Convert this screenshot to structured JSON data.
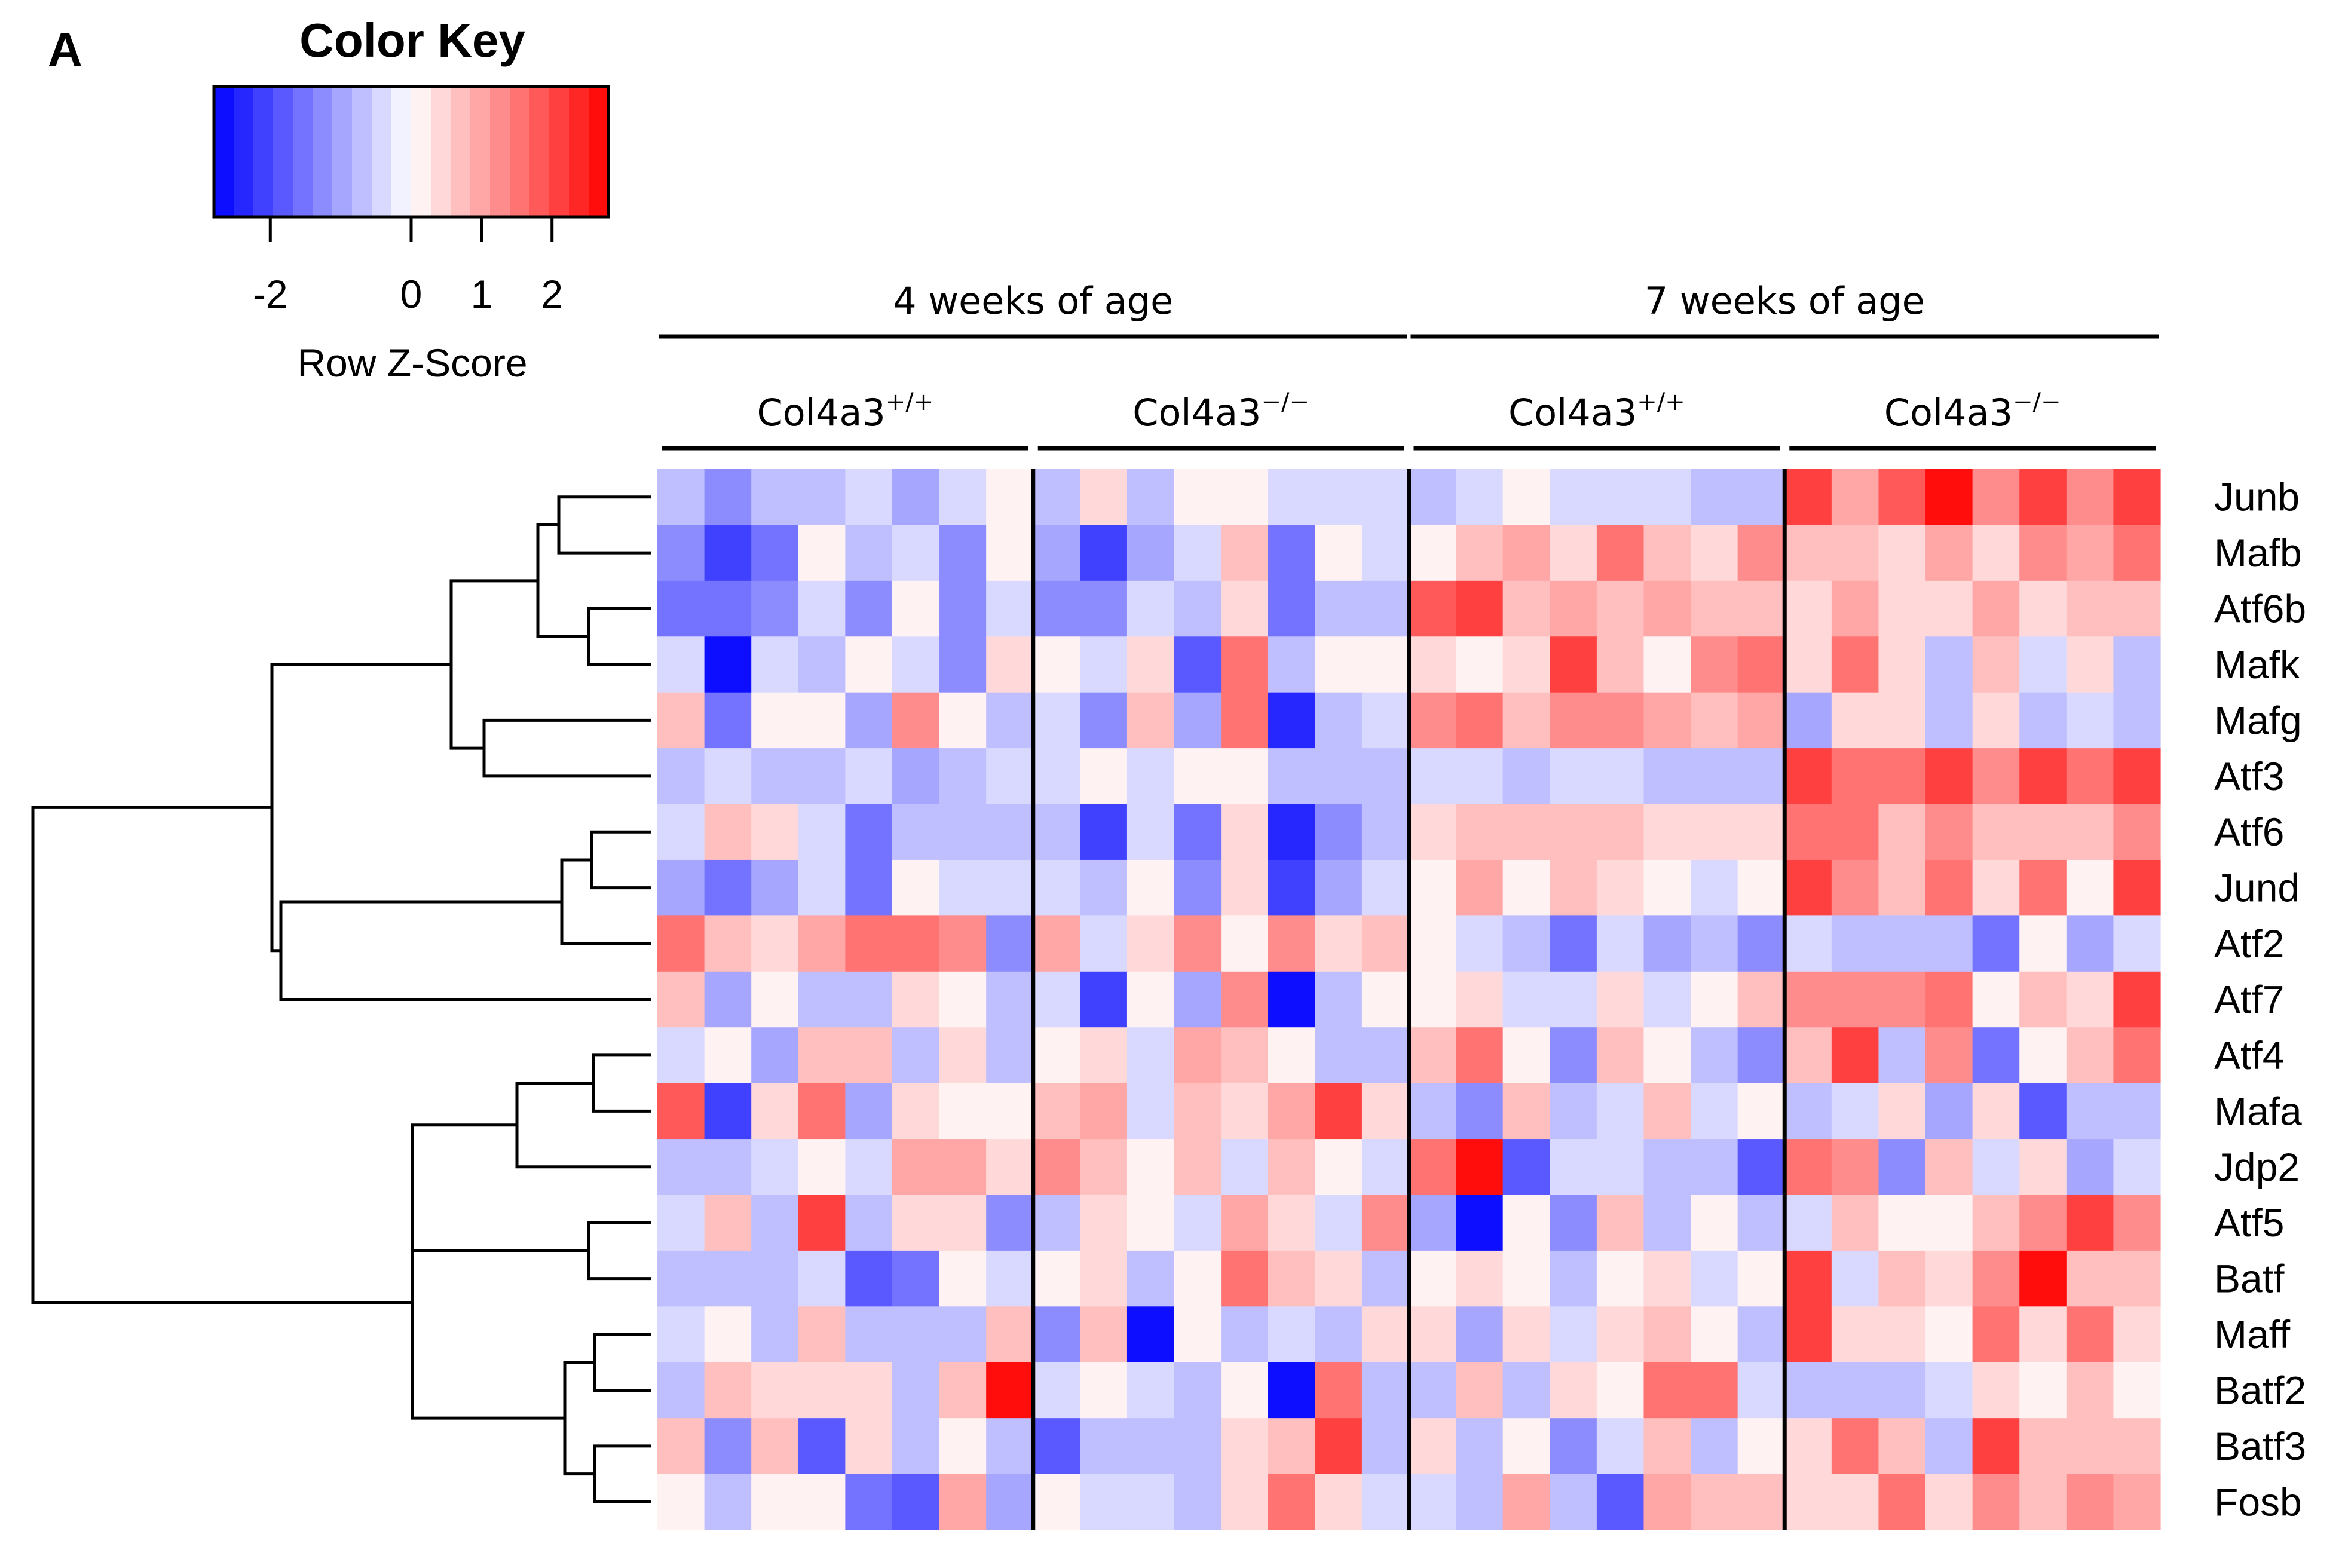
{
  "panel_label": "A",
  "color_key": {
    "title": "Color Key",
    "xlabel": "Row Z-Score",
    "ticks": [
      -2,
      0,
      1,
      2
    ],
    "range": [
      -2.8,
      2.8
    ],
    "low_color": "#0000ff",
    "mid_color": "#ffffff",
    "high_color": "#ff0000",
    "bins": 20
  },
  "groups": {
    "age": [
      {
        "label": "4 weeks of age",
        "columns": [
          0,
          15
        ]
      },
      {
        "label": "7 weeks of age",
        "columns": [
          16,
          31
        ]
      }
    ],
    "genotype": [
      {
        "prefix": "Col4a3",
        "sup": "+/+",
        "columns": [
          0,
          7
        ]
      },
      {
        "prefix": "Col4a3",
        "sup": "−/−",
        "columns": [
          8,
          15
        ]
      },
      {
        "prefix": "Col4a3",
        "sup": "+/+",
        "columns": [
          16,
          23
        ]
      },
      {
        "prefix": "Col4a3",
        "sup": "−/−",
        "columns": [
          24,
          31
        ]
      }
    ]
  },
  "chart_data": {
    "type": "heatmap",
    "title": "",
    "xlabel": "",
    "ylabel": "",
    "value_label": "Row Z-Score",
    "zlim": [
      -2.8,
      2.8
    ],
    "n_columns": 32,
    "rows": [
      "Junb",
      "Mafb",
      "Atf6b",
      "Mafk",
      "Mafg",
      "Atf3",
      "Atf6",
      "Jund",
      "Atf2",
      "Atf7",
      "Atf4",
      "Mafa",
      "Jdp2",
      "Atf5",
      "Batf",
      "Maff",
      "Batf2",
      "Batf3",
      "Fosb"
    ],
    "values": [
      [
        -0.8,
        -1.2,
        -0.6,
        -0.6,
        -0.3,
        -1.0,
        -0.5,
        0.0,
        -0.6,
        0.3,
        -0.6,
        0.0,
        0.0,
        -0.3,
        -0.3,
        -0.3,
        -0.8,
        -0.3,
        0.0,
        -0.4,
        -0.4,
        -0.4,
        -0.6,
        -0.6,
        2.0,
        1.0,
        1.8,
        2.6,
        1.2,
        2.2,
        1.3,
        2.2
      ],
      [
        -1.2,
        -2.0,
        -1.5,
        0.0,
        -0.6,
        -0.3,
        -1.2,
        0.0,
        -1.0,
        -2.0,
        -1.0,
        -0.3,
        0.8,
        -1.5,
        0.0,
        -0.3,
        0.0,
        0.6,
        1.0,
        0.5,
        1.6,
        0.8,
        0.4,
        1.2,
        0.6,
        0.6,
        0.3,
        1.1,
        0.3,
        1.2,
        1.0,
        1.6
      ],
      [
        -1.5,
        -1.5,
        -1.2,
        -0.3,
        -1.2,
        0.0,
        -1.2,
        -0.3,
        -1.2,
        -1.2,
        -0.3,
        -0.6,
        0.4,
        -1.5,
        -0.8,
        -0.6,
        1.8,
        2.2,
        0.8,
        1.1,
        0.6,
        1.1,
        0.8,
        0.8,
        0.3,
        1.0,
        0.4,
        0.4,
        1.0,
        0.4,
        0.8,
        0.8
      ],
      [
        -0.3,
        -2.8,
        -0.3,
        -0.6,
        0.0,
        -0.3,
        -1.2,
        0.4,
        0.0,
        -0.3,
        0.3,
        -1.8,
        1.6,
        -0.6,
        0.0,
        0.0,
        0.4,
        0.0,
        0.4,
        2.0,
        0.6,
        0.0,
        1.2,
        1.6,
        0.4,
        1.6,
        0.3,
        -0.6,
        0.6,
        -0.3,
        0.3,
        -0.6
      ],
      [
        0.8,
        -1.5,
        0.0,
        0.0,
        -1.0,
        1.2,
        0.0,
        -0.6,
        -0.3,
        -1.2,
        0.8,
        -1.0,
        1.6,
        -2.4,
        -0.8,
        -0.3,
        1.2,
        1.6,
        0.8,
        1.2,
        1.2,
        1.0,
        0.8,
        1.0,
        -1.0,
        0.4,
        0.4,
        -0.6,
        0.4,
        -0.6,
        -0.3,
        -0.6
      ],
      [
        -0.6,
        -0.3,
        -0.6,
        -0.6,
        -0.3,
        -1.0,
        -0.6,
        -0.3,
        -0.3,
        0.0,
        -0.3,
        0.0,
        0.0,
        -0.6,
        -0.6,
        -0.6,
        -0.3,
        -0.3,
        -0.6,
        -0.3,
        -0.3,
        -0.6,
        -0.6,
        -0.6,
        2.0,
        1.6,
        1.6,
        2.0,
        1.2,
        2.0,
        1.6,
        2.2
      ],
      [
        -0.3,
        0.8,
        0.3,
        -0.3,
        -1.5,
        -0.6,
        -0.6,
        -0.8,
        -0.6,
        -2.0,
        -0.3,
        -1.5,
        0.3,
        -2.4,
        -1.2,
        -0.8,
        0.4,
        0.6,
        0.6,
        0.6,
        0.6,
        0.4,
        0.4,
        0.4,
        1.6,
        1.6,
        0.8,
        1.2,
        0.8,
        0.8,
        0.8,
        1.2
      ],
      [
        -1.0,
        -1.5,
        -1.0,
        -0.3,
        -1.5,
        0.0,
        -0.3,
        -0.3,
        -0.3,
        -0.6,
        0.0,
        -1.2,
        0.4,
        -2.0,
        -1.0,
        -0.3,
        0.0,
        1.0,
        0.0,
        0.6,
        0.3,
        0.0,
        -0.3,
        0.0,
        2.0,
        1.2,
        0.8,
        1.6,
        0.4,
        1.6,
        0.0,
        2.0
      ],
      [
        1.6,
        0.6,
        0.3,
        1.0,
        1.6,
        1.6,
        1.2,
        -1.2,
        1.0,
        -0.3,
        0.3,
        1.2,
        0.0,
        1.2,
        0.3,
        0.6,
        0.0,
        -0.3,
        -0.6,
        -1.6,
        -0.3,
        -1.0,
        -0.8,
        -1.2,
        -0.4,
        -0.6,
        -0.6,
        -0.6,
        -1.6,
        0.0,
        -1.0,
        -0.3
      ],
      [
        0.6,
        -1.0,
        0.0,
        -0.6,
        -0.6,
        0.3,
        0.0,
        -0.6,
        -0.3,
        -2.0,
        0.0,
        -1.0,
        1.2,
        -2.8,
        -0.6,
        0.0,
        0.0,
        0.3,
        -0.3,
        -0.3,
        0.3,
        -0.3,
        0.0,
        0.6,
        1.4,
        1.4,
        1.4,
        1.6,
        0.0,
        0.6,
        0.3,
        2.0
      ],
      [
        -0.3,
        0.0,
        -1.0,
        0.6,
        0.6,
        -0.8,
        0.3,
        -0.6,
        0.0,
        0.3,
        -0.3,
        1.0,
        0.6,
        0.0,
        -0.8,
        -0.6,
        0.6,
        1.6,
        0.0,
        -1.2,
        0.6,
        0.0,
        -0.6,
        -1.2,
        0.6,
        2.0,
        -0.6,
        1.2,
        -1.6,
        0.0,
        0.6,
        1.6
      ],
      [
        1.8,
        -2.0,
        0.3,
        1.6,
        -1.0,
        0.3,
        0.0,
        0.0,
        0.6,
        1.0,
        -0.3,
        0.6,
        0.3,
        1.0,
        2.0,
        0.3,
        -0.6,
        -1.2,
        0.6,
        -0.6,
        -0.3,
        0.6,
        -0.3,
        0.0,
        -0.6,
        -0.3,
        0.3,
        -1.0,
        0.3,
        -1.8,
        -0.6,
        -0.6
      ],
      [
        -0.6,
        -0.8,
        -0.3,
        0.0,
        -0.3,
        1.0,
        1.0,
        0.3,
        1.2,
        0.6,
        0.0,
        0.6,
        -0.3,
        0.6,
        0.0,
        -0.3,
        1.6,
        2.8,
        -1.8,
        -0.3,
        -0.3,
        -0.6,
        -0.6,
        -1.8,
        1.6,
        1.2,
        -1.2,
        0.6,
        -0.3,
        0.3,
        -1.0,
        -0.3
      ],
      [
        -0.3,
        0.6,
        -0.6,
        2.2,
        -0.6,
        0.3,
        0.3,
        -1.2,
        -0.6,
        0.3,
        0.0,
        -0.3,
        1.0,
        0.3,
        -0.3,
        1.2,
        -1.0,
        -2.6,
        0.0,
        -1.2,
        0.6,
        -0.8,
        0.0,
        -0.6,
        -0.3,
        0.6,
        0.0,
        0.0,
        0.6,
        1.2,
        2.0,
        1.2
      ],
      [
        -0.8,
        -0.8,
        -0.6,
        -0.3,
        -1.8,
        -1.5,
        0.0,
        -0.3,
        0.0,
        0.3,
        -0.6,
        0.0,
        1.6,
        0.6,
        0.3,
        -0.8,
        0.0,
        0.3,
        0.0,
        -0.8,
        0.0,
        0.3,
        -0.3,
        0.0,
        2.2,
        -0.3,
        0.6,
        0.3,
        1.2,
        2.6,
        0.8,
        0.8
      ],
      [
        -0.3,
        0.0,
        -0.6,
        0.6,
        -0.6,
        -0.6,
        -0.6,
        0.8,
        -1.2,
        0.6,
        -2.8,
        0.0,
        -0.8,
        -0.3,
        -0.8,
        0.3,
        0.3,
        -1.0,
        0.3,
        -0.3,
        0.3,
        0.6,
        0.0,
        -0.6,
        2.2,
        0.3,
        0.3,
        0.0,
        1.6,
        0.3,
        1.6,
        0.3
      ],
      [
        -0.6,
        0.6,
        0.3,
        0.3,
        0.3,
        -0.8,
        0.6,
        2.8,
        -0.3,
        0.0,
        -0.3,
        -0.6,
        0.0,
        -2.8,
        1.6,
        -0.8,
        -0.8,
        0.6,
        -0.8,
        0.3,
        0.0,
        1.6,
        1.6,
        -0.3,
        -0.6,
        -0.6,
        -0.6,
        -0.3,
        0.3,
        0.0,
        0.8,
        0.0
      ],
      [
        0.6,
        -1.2,
        0.8,
        -1.8,
        0.3,
        -0.6,
        0.0,
        -0.6,
        -1.8,
        -0.6,
        -0.6,
        -0.6,
        0.3,
        0.6,
        2.0,
        -0.6,
        0.3,
        -0.6,
        0.0,
        -1.2,
        -0.3,
        0.6,
        -0.6,
        0.0,
        0.3,
        1.6,
        0.6,
        -0.6,
        2.0,
        0.6,
        0.6,
        0.6
      ],
      [
        0.0,
        -0.6,
        0.0,
        0.0,
        -1.5,
        -1.8,
        1.0,
        -1.0,
        0.0,
        -0.3,
        -0.3,
        -0.6,
        0.3,
        1.6,
        0.3,
        -0.3,
        -0.3,
        -0.8,
        1.0,
        -0.6,
        -1.8,
        1.0,
        0.6,
        0.6,
        0.3,
        0.3,
        1.6,
        0.3,
        1.2,
        0.6,
        1.2,
        1.0
      ]
    ]
  }
}
